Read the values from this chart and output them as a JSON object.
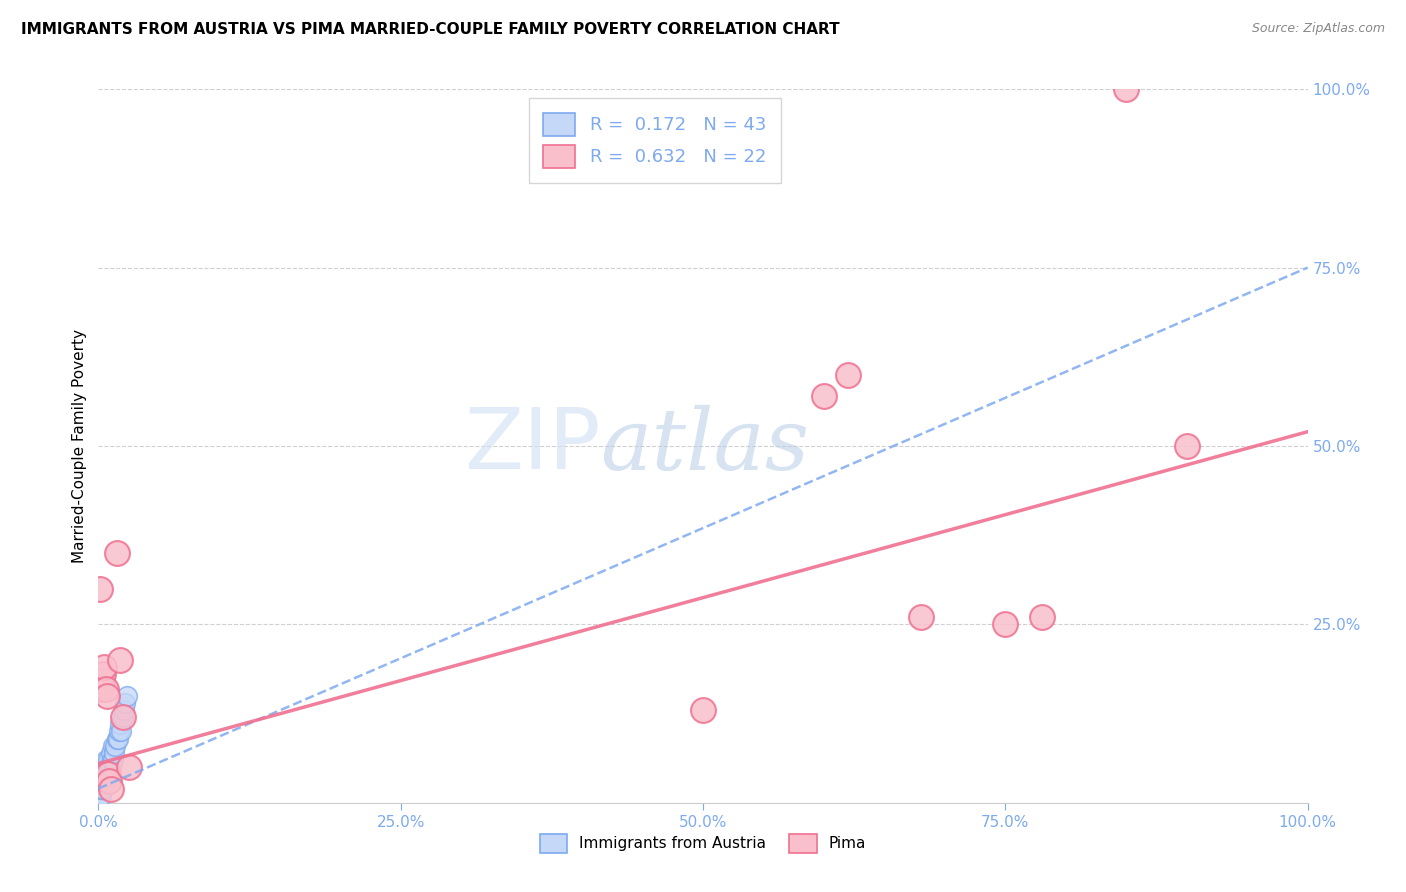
{
  "title": "IMMIGRANTS FROM AUSTRIA VS PIMA MARRIED-COUPLE FAMILY POVERTY CORRELATION CHART",
  "source": "Source: ZipAtlas.com",
  "ylabel": "Married-Couple Family Poverty",
  "xlim": [
    0,
    1.0
  ],
  "ylim": [
    0,
    1.0
  ],
  "xtick_labels": [
    "0.0%",
    "25.0%",
    "50.0%",
    "75.0%",
    "100.0%"
  ],
  "xtick_vals": [
    0.0,
    0.25,
    0.5,
    0.75,
    1.0
  ],
  "ytick_labels_right": [
    "100.0%",
    "75.0%",
    "50.0%",
    "25.0%"
  ],
  "ytick_vals_right": [
    1.0,
    0.75,
    0.5,
    0.25
  ],
  "background_color": "#ffffff",
  "grid_color": "#d0d0d0",
  "blue_color": "#7eaaef",
  "blue_fill": "#c5d8f7",
  "pink_color": "#f07090",
  "pink_fill": "#f9c0cc",
  "R_blue": 0.172,
  "N_blue": 43,
  "R_pink": 0.632,
  "N_pink": 22,
  "blue_line_x0": 0.0,
  "blue_line_y0": 0.02,
  "blue_line_x1": 1.0,
  "blue_line_y1": 0.75,
  "pink_line_x0": 0.0,
  "pink_line_y0": 0.055,
  "pink_line_x1": 1.0,
  "pink_line_y1": 0.52,
  "blue_scatter_x": [
    0.001,
    0.001,
    0.001,
    0.001,
    0.002,
    0.002,
    0.002,
    0.002,
    0.002,
    0.003,
    0.003,
    0.003,
    0.003,
    0.004,
    0.004,
    0.004,
    0.005,
    0.005,
    0.005,
    0.006,
    0.006,
    0.006,
    0.007,
    0.007,
    0.008,
    0.008,
    0.009,
    0.01,
    0.01,
    0.011,
    0.012,
    0.012,
    0.013,
    0.014,
    0.015,
    0.016,
    0.017,
    0.018,
    0.019,
    0.02,
    0.021,
    0.022,
    0.024
  ],
  "blue_scatter_y": [
    0.01,
    0.02,
    0.03,
    0.04,
    0.01,
    0.02,
    0.03,
    0.04,
    0.05,
    0.02,
    0.03,
    0.04,
    0.05,
    0.02,
    0.03,
    0.04,
    0.03,
    0.04,
    0.05,
    0.03,
    0.04,
    0.06,
    0.04,
    0.05,
    0.04,
    0.06,
    0.05,
    0.05,
    0.07,
    0.06,
    0.06,
    0.08,
    0.07,
    0.08,
    0.09,
    0.09,
    0.1,
    0.11,
    0.1,
    0.12,
    0.13,
    0.14,
    0.15
  ],
  "pink_scatter_x": [
    0.001,
    0.002,
    0.003,
    0.004,
    0.005,
    0.006,
    0.007,
    0.008,
    0.009,
    0.01,
    0.015,
    0.018,
    0.02,
    0.025,
    0.5,
    0.6,
    0.62,
    0.68,
    0.75,
    0.78,
    0.85,
    0.9
  ],
  "pink_scatter_y": [
    0.3,
    0.16,
    0.17,
    0.18,
    0.19,
    0.16,
    0.15,
    0.04,
    0.03,
    0.02,
    0.35,
    0.2,
    0.12,
    0.05,
    0.13,
    0.57,
    0.6,
    0.26,
    0.25,
    0.26,
    1.0,
    0.5
  ],
  "watermark_zip": "ZIP",
  "watermark_atlas": "atlas"
}
